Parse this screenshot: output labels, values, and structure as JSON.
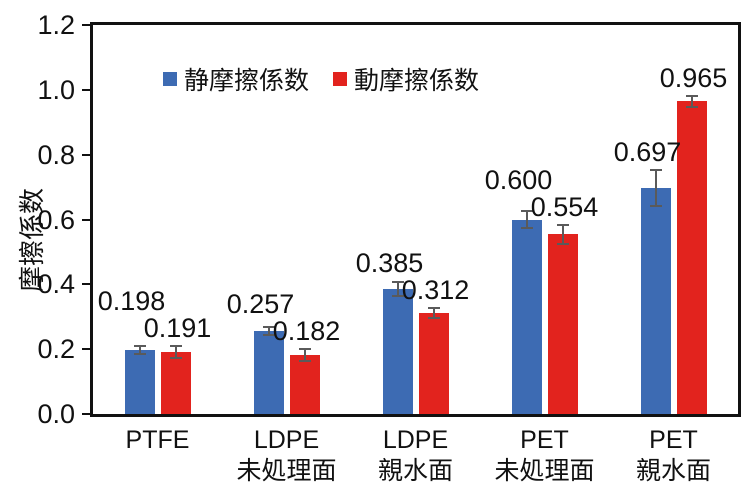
{
  "chart_data": {
    "type": "bar",
    "title": "",
    "ylabel": "摩擦係数",
    "xlabel": "",
    "ylim": [
      0,
      1.2
    ],
    "yticks": [
      "0.0",
      "0.2",
      "0.4",
      "0.6",
      "0.8",
      "1.0",
      "1.2"
    ],
    "grid": false,
    "legend_position": "top-left-inside",
    "axis_color": "#111111",
    "error_bar_color": "#5a5a5a",
    "categories": [
      {
        "line1": "PTFE",
        "line2": ""
      },
      {
        "line1": "LDPE",
        "line2": "未処理面"
      },
      {
        "line1": "LDPE",
        "line2": "親水面"
      },
      {
        "line1": "PET",
        "line2": "未処理面"
      },
      {
        "line1": "PET",
        "line2": "親水面"
      }
    ],
    "series": [
      {
        "key": "static-friction",
        "name": "静摩擦係数",
        "color": "#3D6BB3",
        "values": [
          0.198,
          0.257,
          0.385,
          0.6,
          0.697
        ],
        "labels": [
          "0.198",
          "0.257",
          "0.385",
          "0.600",
          "0.697"
        ],
        "errors": [
          0.012,
          0.012,
          0.022,
          0.025,
          0.055
        ]
      },
      {
        "key": "kinetic-friction",
        "name": "動摩擦係数",
        "color": "#E2231E",
        "values": [
          0.191,
          0.182,
          0.312,
          0.554,
          0.965
        ],
        "labels": [
          "0.191",
          "0.182",
          "0.312",
          "0.554",
          "0.965"
        ],
        "errors": [
          0.018,
          0.02,
          0.015,
          0.03,
          0.017
        ]
      }
    ]
  }
}
